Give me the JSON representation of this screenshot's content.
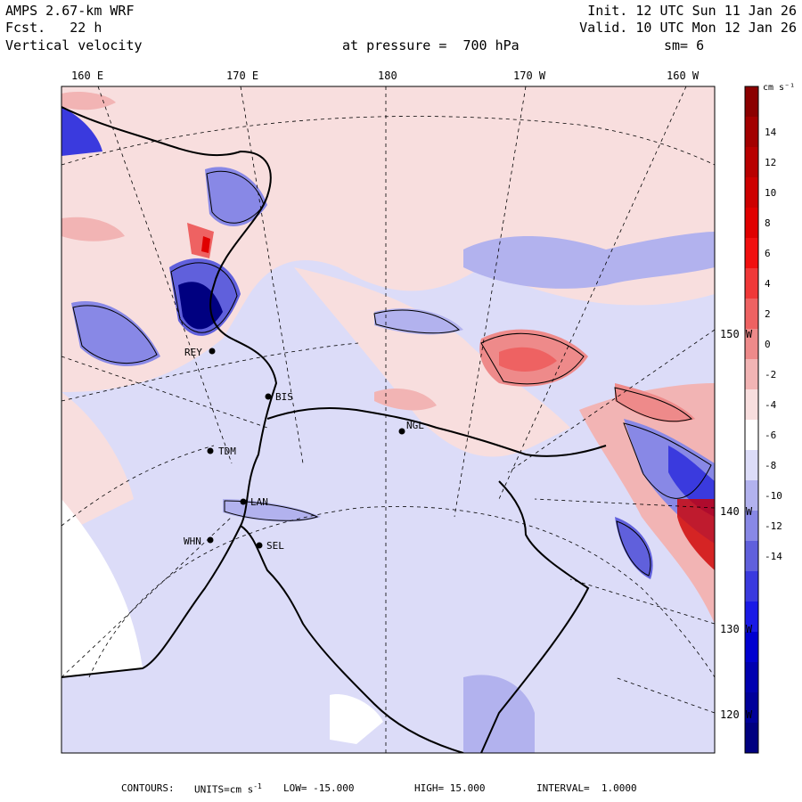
{
  "header": {
    "model": "AMPS 2.67-km WRF",
    "forecast": "Fcst.   22 h",
    "field": "Vertical velocity",
    "pressure": "at pressure =  700 hPa",
    "init": "Init. 12 UTC Sun 11 Jan 26",
    "valid": "Valid. 10 UTC Mon 12 Jan 26",
    "smoothing": "sm= 6"
  },
  "top_longitudes": [
    "160 E",
    "170 E",
    "180",
    "170 W",
    "160 W"
  ],
  "right_longitudes": [
    "150 W",
    "140 W",
    "130 W",
    "120 W"
  ],
  "stations": [
    "REY",
    "BIS",
    "NGL",
    "TDM",
    "LAN",
    "WHN",
    "SEL"
  ],
  "colorbar": {
    "units": "cm s⁻¹",
    "ticks": [
      "14",
      "12",
      "10",
      "8",
      "6",
      "4",
      "2",
      "0",
      "-2",
      "-4",
      "-6",
      "-8",
      "-10",
      "-12",
      "-14"
    ],
    "colors": [
      "#8b0000",
      "#a30000",
      "#b80000",
      "#cd0000",
      "#e00000",
      "#f11010",
      "#f03838",
      "#ee6262",
      "#ee8a8a",
      "#f2b4b4",
      "#f8dede",
      "#ffffff",
      "#dcdcf8",
      "#b2b2ee",
      "#8888e6",
      "#6060dc",
      "#3a3ade",
      "#1a1ae6",
      "#0000d0",
      "#0000b0",
      "#00009a",
      "#000080"
    ]
  },
  "footer": {
    "contours": "CONTOURS:",
    "units_label": "UNITS=cm s",
    "units_exp": "-1",
    "low": "LOW= -15.000",
    "high": "HIGH= 15.000",
    "interval": "INTERVAL=  1.0000"
  }
}
